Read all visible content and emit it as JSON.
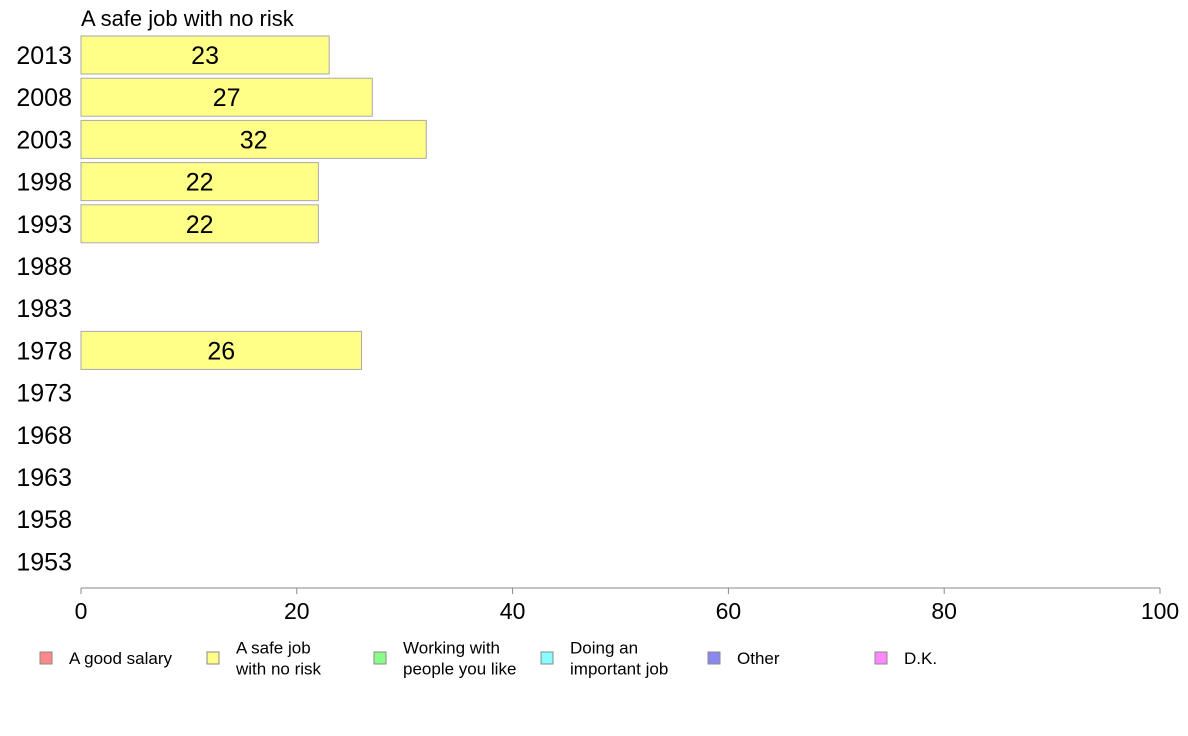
{
  "chart_data": {
    "type": "bar",
    "orientation": "horizontal",
    "title": "A safe job with no risk",
    "categories": [
      "2013",
      "2008",
      "2003",
      "1998",
      "1993",
      "1988",
      "1983",
      "1978",
      "1973",
      "1968",
      "1963",
      "1958",
      "1953"
    ],
    "series": [
      {
        "name": "A safe job with no risk",
        "color": "#ffff88",
        "values": [
          23,
          27,
          32,
          22,
          22,
          null,
          null,
          26,
          null,
          null,
          null,
          null,
          null
        ]
      }
    ],
    "xlim": [
      0,
      100
    ],
    "xticks": [
      0,
      20,
      40,
      60,
      80,
      100
    ],
    "grid": false,
    "legend": {
      "position": "bottom",
      "items": [
        {
          "lines": [
            "A good salary"
          ],
          "color": "#ff8888"
        },
        {
          "lines": [
            "A safe job",
            "with no risk"
          ],
          "color": "#ffff88"
        },
        {
          "lines": [
            "Working with",
            "people you like"
          ],
          "color": "#88ff88"
        },
        {
          "lines": [
            "Doing an",
            "important job"
          ],
          "color": "#88ffff"
        },
        {
          "lines": [
            "Other"
          ],
          "color": "#8888ee"
        },
        {
          "lines": [
            "D.K."
          ],
          "color": "#ff88ff"
        }
      ]
    }
  }
}
